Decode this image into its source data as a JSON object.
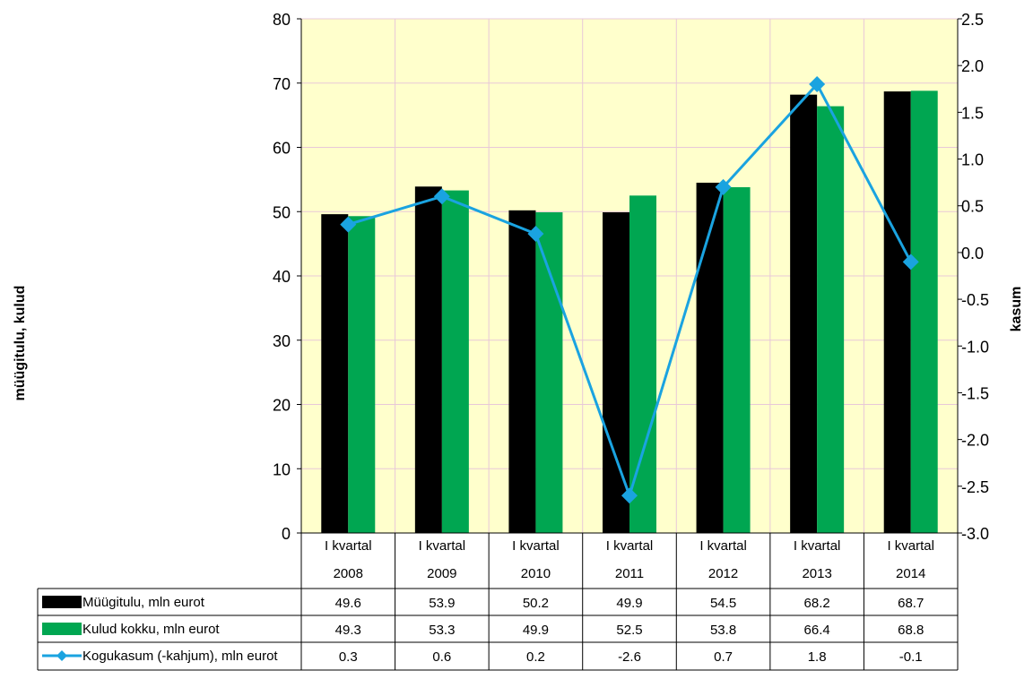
{
  "chart_data": {
    "type": "bar",
    "categories": [
      [
        "I kvartal",
        "2008"
      ],
      [
        "I kvartal",
        "2009"
      ],
      [
        "I kvartal",
        "2010"
      ],
      [
        "I kvartal",
        "2011"
      ],
      [
        "I kvartal",
        "2012"
      ],
      [
        "I kvartal",
        "2013"
      ],
      [
        "I kvartal",
        "2014"
      ]
    ],
    "series": [
      {
        "name": "Müügitulu, mln eurot",
        "type": "bar",
        "axis": "left",
        "color": "#000000",
        "values": [
          49.6,
          53.9,
          50.2,
          49.9,
          54.5,
          68.2,
          68.7
        ]
      },
      {
        "name": "Kulud kokku, mln eurot",
        "type": "bar",
        "axis": "left",
        "color": "#00a651",
        "values": [
          49.3,
          53.3,
          49.9,
          52.5,
          53.8,
          66.4,
          68.8
        ]
      },
      {
        "name": "Kogukasum (-kahjum), mln eurot",
        "type": "line",
        "axis": "right",
        "color": "#1aa3e0",
        "values": [
          0.3,
          0.6,
          0.2,
          -2.6,
          0.7,
          1.8,
          -0.1
        ]
      }
    ],
    "table_values": [
      [
        "49.6",
        "53.9",
        "50.2",
        "49.9",
        "54.5",
        "68.2",
        "68.7"
      ],
      [
        "49.3",
        "53.3",
        "49.9",
        "52.5",
        "53.8",
        "66.4",
        "68.8"
      ],
      [
        "0.3",
        "0.6",
        "0.2",
        "-2.6",
        "0.7",
        "1.8",
        "-0.1"
      ]
    ],
    "ylabel": "müügitulu, kulud",
    "y2label": "kasum",
    "ylim": [
      0,
      80
    ],
    "y2lim": [
      -3.0,
      2.5
    ],
    "yticks": [
      "0",
      "10",
      "20",
      "30",
      "40",
      "50",
      "60",
      "70",
      "80"
    ],
    "y2ticks": [
      "-3.0",
      "-2.5",
      "-2.0",
      "-1.5",
      "-1.0",
      "-0.5",
      "0.0",
      "0.5",
      "1.0",
      "1.5",
      "2.0",
      "2.5"
    ],
    "plot_background": "#ffffcc",
    "grid": true,
    "grid_color": "#e8c8d8",
    "legend": "data table below plot"
  }
}
